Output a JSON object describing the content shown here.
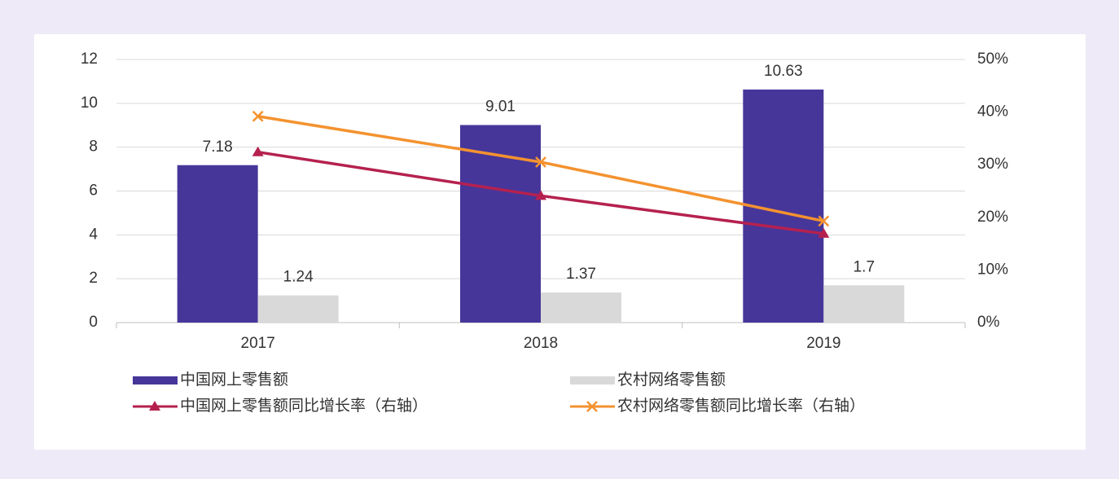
{
  "chart_data": {
    "type": "bar_line",
    "categories": [
      "2017",
      "2018",
      "2019"
    ],
    "series": [
      {
        "name": "中国网上零售额",
        "type": "bar",
        "color": "#46369a",
        "values": [
          7.18,
          9.01,
          10.63
        ]
      },
      {
        "name": "农村网络零售额",
        "type": "bar",
        "color": "#d9d9d9",
        "values": [
          1.24,
          1.37,
          1.7
        ]
      },
      {
        "name": "中国网上零售额同比增长率（右轴）",
        "type": "line",
        "marker": "triangle",
        "axis": "y2",
        "color": "#b5214f",
        "values": [
          32.4,
          24.1,
          16.9
        ]
      },
      {
        "name": "农村网络零售额同比增长率（右轴）",
        "type": "line",
        "marker": "x",
        "axis": "y2",
        "color": "#f4922f",
        "values": [
          39.2,
          30.5,
          19.3
        ]
      }
    ],
    "ylim": [
      0,
      12
    ],
    "yticks": [
      0,
      2,
      4,
      6,
      8,
      10,
      12
    ],
    "y2lim": [
      0,
      50
    ],
    "y2ticks": [
      {
        "value": 0,
        "label": "0%"
      },
      {
        "value": 10,
        "label": "10%"
      },
      {
        "value": 20,
        "label": "20%"
      },
      {
        "value": 30,
        "label": "30%"
      },
      {
        "value": 40,
        "label": "40%"
      },
      {
        "value": 50,
        "label": "50%"
      }
    ],
    "grid": true,
    "legend": "bottom"
  }
}
